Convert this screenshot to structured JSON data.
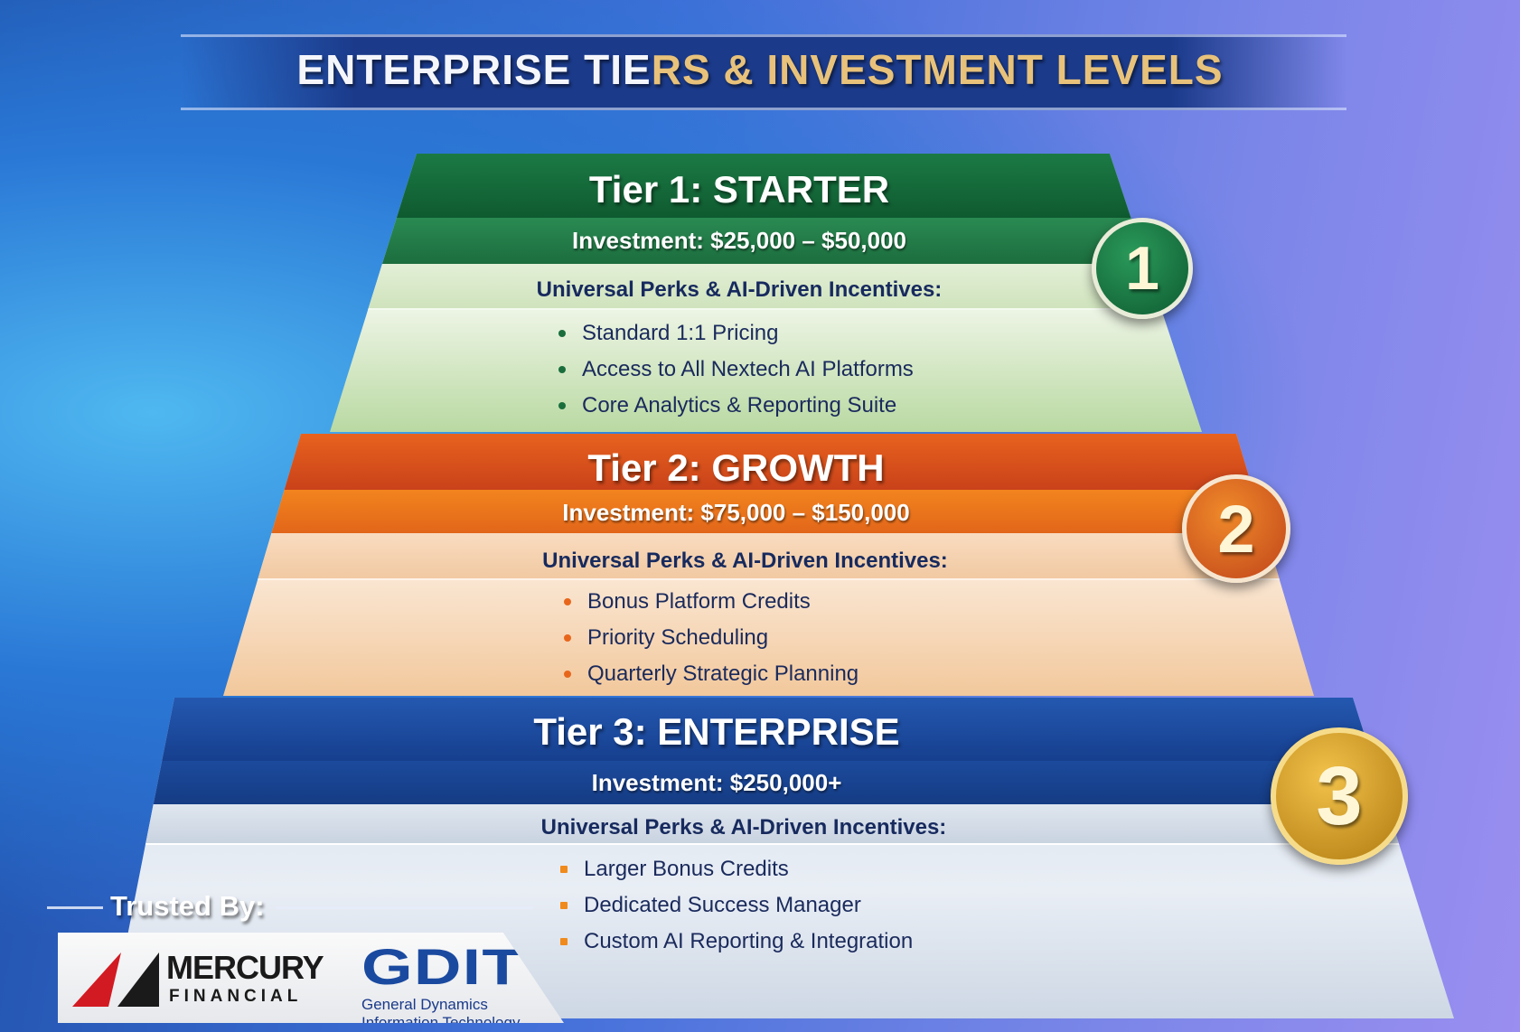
{
  "title": {
    "part1": "ENTERPRISE TIE",
    "part2": "RS & INVESTMENT LEVELS"
  },
  "tiers": [
    {
      "number": "1",
      "title": "Tier 1: STARTER",
      "investment": "Investment: $25,000 – $50,000",
      "perks_heading": "Universal Perks & AI-Driven Incentives:",
      "perks": [
        "Standard 1:1 Pricing",
        "Access to All Nextech AI Platforms",
        "Core Analytics & Reporting Suite"
      ],
      "color": "#1a6e3c"
    },
    {
      "number": "2",
      "title": "Tier 2: GROWTH",
      "investment": "Investment: $75,000 – $150,000",
      "perks_heading": "Universal Perks & AI-Driven Incentives:",
      "perks": [
        "Bonus Platform Credits",
        "Priority Scheduling",
        "Quarterly Strategic Planning"
      ],
      "color": "#e0581c"
    },
    {
      "number": "3",
      "title": "Tier 3: ENTERPRISE",
      "investment": "Investment: $250,000+",
      "perks_heading": "Universal Perks & AI-Driven Incentives:",
      "perks": [
        "Larger Bonus Credits",
        "Dedicated Success Manager",
        "Custom AI Reporting & Integration"
      ],
      "color": "#1a4aa0"
    }
  ],
  "trusted_by": "Trusted By:",
  "logos": {
    "mercury": {
      "line1": "MERCURY",
      "line2": "FINANCIAL"
    },
    "gdit": {
      "name": "GDIT",
      "full": "General Dynamics Information Technology"
    }
  }
}
